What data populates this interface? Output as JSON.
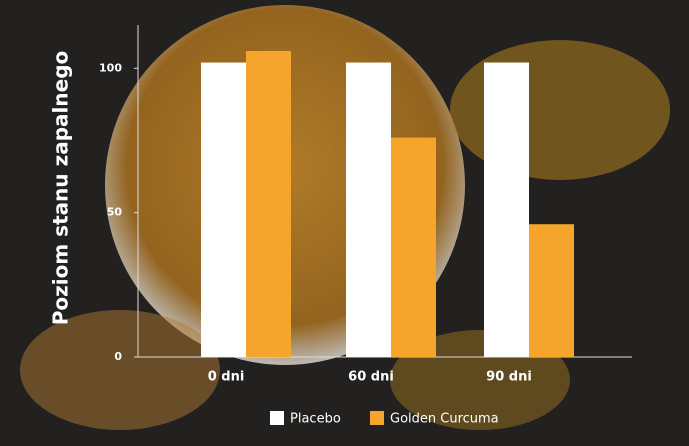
{
  "chart_data": {
    "type": "bar",
    "y_label": "Poziom stanu zapalnego",
    "categories": [
      "0 dni",
      "60 dni",
      "90 dni"
    ],
    "series": [
      {
        "name": "Placebo",
        "color": "#ffffff",
        "values": [
          102,
          102,
          102
        ]
      },
      {
        "name": "Golden Curcuma",
        "color": "#f5a52c",
        "values": [
          106,
          76,
          46
        ]
      }
    ],
    "ylim": [
      0,
      115
    ],
    "yticks": [
      0,
      50,
      100
    ]
  }
}
